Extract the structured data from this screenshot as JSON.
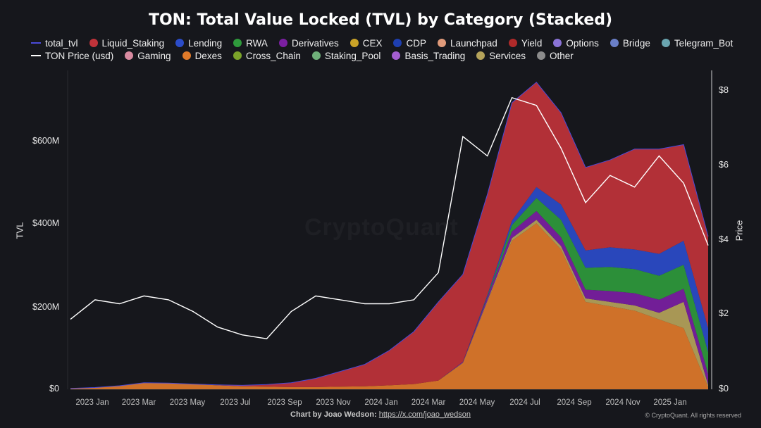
{
  "title": "TON: Total Value Locked (TVL) by Category (Stacked)",
  "legend_row1": [
    {
      "label": "total_tvl",
      "color": "#4a4ad8",
      "kind": "line"
    },
    {
      "label": "Liquid_Staking",
      "color": "#c0333a",
      "kind": "dot"
    },
    {
      "label": "Lending",
      "color": "#2b4cc9",
      "kind": "dot"
    },
    {
      "label": "RWA",
      "color": "#2f9a3c",
      "kind": "dot"
    },
    {
      "label": "Derivatives",
      "color": "#7b1fa2",
      "kind": "dot"
    },
    {
      "label": "CEX",
      "color": "#c9a227",
      "kind": "dot"
    },
    {
      "label": "CDP",
      "color": "#1e3fb0",
      "kind": "dot"
    },
    {
      "label": "Launchpad",
      "color": "#e09a7a",
      "kind": "dot"
    },
    {
      "label": "Yield",
      "color": "#b02a2a",
      "kind": "dot"
    },
    {
      "label": "Options",
      "color": "#8a73d6",
      "kind": "dot"
    },
    {
      "label": "Bridge",
      "color": "#6a7fc8",
      "kind": "dot"
    },
    {
      "label": "Telegram_Bot",
      "color": "#6aa5b0",
      "kind": "dot"
    }
  ],
  "legend_row2": [
    {
      "label": "TON Price (usd)",
      "color": "#ffffff",
      "kind": "line"
    },
    {
      "label": "Gaming",
      "color": "#d88aa0",
      "kind": "dot"
    },
    {
      "label": "Dexes",
      "color": "#e07a2a",
      "kind": "dot"
    },
    {
      "label": "Cross_Chain",
      "color": "#7ba32a",
      "kind": "dot"
    },
    {
      "label": "Staking_Pool",
      "color": "#6fb07a",
      "kind": "dot"
    },
    {
      "label": "Basis_Trading",
      "color": "#a45ed0",
      "kind": "dot"
    },
    {
      "label": "Services",
      "color": "#b5a35a",
      "kind": "dot"
    },
    {
      "label": "Other",
      "color": "#8c8c8c",
      "kind": "dot"
    }
  ],
  "axes": {
    "left_label": "TVL",
    "right_label": "Price",
    "left_ticks": [
      "$0",
      "$200M",
      "$400M",
      "$600M"
    ],
    "right_ticks": [
      "$0",
      "$2",
      "$4",
      "$6",
      "$8"
    ],
    "x_ticks": [
      "2023 Jan",
      "2023 Mar",
      "2023 May",
      "2023 Jul",
      "2023 Sep",
      "2023 Nov",
      "2024 Jan",
      "2024 Mar",
      "2024 May",
      "2024 Jul",
      "2024 Sep",
      "2024 Nov",
      "2025 Jan"
    ]
  },
  "credit_prefix": "Chart by Joao Wedson:",
  "credit_link": "https://x.com/joao_wedson",
  "copyright": "© CryptoQuant. All rights reserved",
  "watermark": "CryptoQuant",
  "chart_data": {
    "type": "area",
    "title": "TON: Total Value Locked (TVL) by Category (Stacked)",
    "ylabel": "TVL",
    "y2label": "Price",
    "ylim": [
      0,
      730000000
    ],
    "y2lim": [
      0,
      8.2
    ],
    "x": [
      "2022-12",
      "2023-01",
      "2023-02",
      "2023-03",
      "2023-04",
      "2023-05",
      "2023-06",
      "2023-07",
      "2023-08",
      "2023-09",
      "2023-10",
      "2023-11",
      "2023-12",
      "2024-01",
      "2024-02",
      "2024-03",
      "2024-04",
      "2024-05",
      "2024-06",
      "2024-07",
      "2024-08",
      "2024-09",
      "2024-10",
      "2024-11",
      "2024-12",
      "2025-01",
      "2025-02"
    ],
    "series": [
      {
        "name": "Dexes",
        "values": [
          2000000,
          4000000,
          8000000,
          15000000,
          14000000,
          12000000,
          9000000,
          7000000,
          6000000,
          5000000,
          5000000,
          6000000,
          7000000,
          9000000,
          12000000,
          20000000,
          60000000,
          200000000,
          340000000,
          380000000,
          320000000,
          200000000,
          190000000,
          180000000,
          160000000,
          140000000,
          5000000
        ]
      },
      {
        "name": "Services",
        "values": [
          0,
          0,
          0,
          0,
          0,
          0,
          0,
          0,
          0,
          0,
          0,
          0,
          0,
          0,
          0,
          0,
          1000000,
          3000000,
          6000000,
          8000000,
          8000000,
          8000000,
          10000000,
          12000000,
          15000000,
          60000000,
          5000000
        ]
      },
      {
        "name": "Derivatives",
        "values": [
          0,
          0,
          0,
          0,
          0,
          0,
          0,
          0,
          0,
          0,
          0,
          0,
          0,
          0,
          0,
          0,
          2000000,
          8000000,
          15000000,
          20000000,
          20000000,
          20000000,
          25000000,
          28000000,
          30000000,
          30000000,
          25000000
        ]
      },
      {
        "name": "RWA",
        "values": [
          0,
          0,
          0,
          0,
          0,
          0,
          0,
          0,
          0,
          0,
          0,
          0,
          0,
          0,
          0,
          0,
          0,
          2000000,
          15000000,
          30000000,
          40000000,
          50000000,
          55000000,
          55000000,
          55000000,
          55000000,
          50000000
        ]
      },
      {
        "name": "Lending",
        "values": [
          0,
          0,
          0,
          0,
          0,
          0,
          0,
          0,
          0,
          0,
          0,
          0,
          0,
          0,
          0,
          0,
          0,
          3000000,
          10000000,
          25000000,
          35000000,
          40000000,
          45000000,
          45000000,
          50000000,
          55000000,
          55000000
        ]
      },
      {
        "name": "Liquid_Staking",
        "values": [
          0,
          0,
          0,
          0,
          0,
          0,
          1000000,
          2000000,
          5000000,
          10000000,
          20000000,
          35000000,
          50000000,
          80000000,
          120000000,
          180000000,
          200000000,
          230000000,
          270000000,
          240000000,
          210000000,
          190000000,
          200000000,
          230000000,
          240000000,
          220000000,
          210000000
        ]
      }
    ],
    "price_series": {
      "name": "TON Price (usd)",
      "values": [
        1.8,
        2.3,
        2.2,
        2.4,
        2.3,
        2.0,
        1.6,
        1.4,
        1.3,
        2.0,
        2.4,
        2.3,
        2.2,
        2.2,
        2.3,
        3.0,
        6.5,
        6.0,
        7.5,
        7.3,
        6.2,
        4.8,
        5.5,
        5.2,
        6.0,
        5.3,
        3.7
      ]
    }
  }
}
